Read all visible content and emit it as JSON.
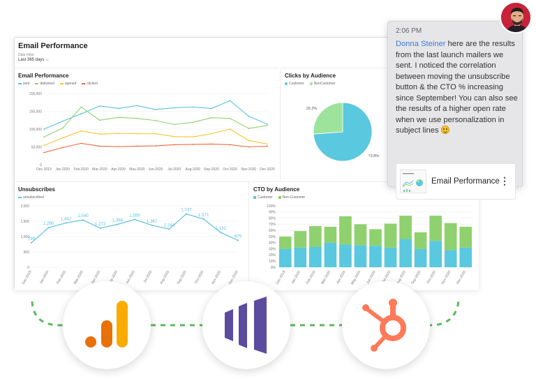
{
  "dashboard": {
    "title": "Email Performance",
    "filter_label": "Date Filter",
    "filter_value": "Last 365 days"
  },
  "panels": {
    "email_performance": {
      "title": "Email Performance",
      "legend": [
        {
          "label": "sent",
          "color": "#5bc0de"
        },
        {
          "label": "delivered",
          "color": "#8fd16e"
        },
        {
          "label": "opened",
          "color": "#f4c430"
        },
        {
          "label": "clicked",
          "color": "#ef6a3c"
        }
      ]
    },
    "clicks_by_audience": {
      "title": "Clicks by Audience",
      "legend": [
        {
          "label": "Customer",
          "color": "#5ac8de"
        },
        {
          "label": "NonCustomer",
          "color": "#9ee39b"
        }
      ]
    },
    "unsubscribes": {
      "title": "Unsubscribes",
      "legend": [
        {
          "label": "unsubscribed",
          "color": "#5bc0de"
        }
      ]
    },
    "cto_by_audience": {
      "title": "CTO by Audience",
      "legend": [
        {
          "label": "Customer",
          "color": "#5ac8de"
        },
        {
          "label": "Non-Customer",
          "color": "#8fd16e"
        }
      ]
    }
  },
  "chart_data": [
    {
      "type": "line",
      "title": "Email Performance",
      "categories": [
        "Dec-2019",
        "Jan-2020",
        "Feb-2020",
        "Mar-2020",
        "Apr-2020",
        "May-2020",
        "Jun-2020",
        "Jul-2020",
        "Aug-2020",
        "Sep-2020",
        "Oct-2020",
        "Nov-2020",
        "Dec-2020"
      ],
      "yticks": [
        "0",
        "50,000",
        "100,000",
        "150,000",
        "200,000"
      ],
      "ylim": [
        0,
        200000
      ],
      "series": [
        {
          "name": "sent",
          "color": "#5bc0de",
          "values": [
            100000,
            122000,
            143000,
            165000,
            158000,
            166000,
            155000,
            160000,
            162000,
            158000,
            180000,
            136000,
            114000
          ]
        },
        {
          "name": "delivered",
          "color": "#8fd16e",
          "values": [
            78000,
            103000,
            162000,
            125000,
            133000,
            130000,
            124000,
            113000,
            119000,
            132000,
            130000,
            102000,
            110000
          ]
        },
        {
          "name": "opened",
          "color": "#f4c430",
          "values": [
            54000,
            75000,
            95000,
            86000,
            88000,
            87000,
            87000,
            79000,
            78000,
            87000,
            100000,
            68000,
            58000
          ]
        },
        {
          "name": "clicked",
          "color": "#ef6a3c",
          "values": [
            34000,
            48000,
            60000,
            52000,
            51000,
            52000,
            53000,
            56000,
            57000,
            58000,
            56000,
            50000,
            52000
          ]
        }
      ],
      "grid": true
    },
    {
      "type": "pie",
      "title": "Clicks by Audience",
      "slices": [
        {
          "name": "Customer",
          "value": 73.8,
          "label": "73.8%",
          "color": "#5ac8de"
        },
        {
          "name": "NonCustomer",
          "value": 26.2,
          "label": "26.2%",
          "color": "#9ee39b"
        }
      ]
    },
    {
      "type": "line",
      "title": "Unsubscribes",
      "categories": [
        "Dec-2019",
        "Jan-2020",
        "Feb-2020",
        "Mar-2020",
        "Apr-2020",
        "May-2020",
        "Jun-2020",
        "Jul-2020",
        "Aug-2020",
        "Sep-2020",
        "Oct-2020",
        "Nov-2020",
        "Dec-2020"
      ],
      "yticks": [
        "0",
        "500",
        "1,000",
        "1,500",
        "2,000"
      ],
      "ylim": [
        0,
        2000
      ],
      "series": [
        {
          "name": "unsubscribed",
          "color": "#5bc0de",
          "values": [
            799,
            1290,
            1442,
            1540,
            1272,
            1398,
            1556,
            1367,
            1244,
            1737,
            1571,
            1132,
            875
          ],
          "labels": [
            "799",
            "1,290",
            "1,442",
            "1,540",
            "1,272",
            "1,398",
            "1,556",
            "1,367",
            "1,244",
            "1,737",
            "1,571",
            "1,132",
            "875"
          ]
        }
      ],
      "grid": true
    },
    {
      "type": "bar",
      "stacked": true,
      "title": "CTO by Audience",
      "categories": [
        "Dec-2019",
        "Jan-2020",
        "Feb-2020",
        "Mar-2020",
        "Apr-2020",
        "May-2020",
        "Jun-2020",
        "Jul-2020",
        "Aug-2020",
        "Sep-2020",
        "Oct-2020",
        "Nov-2020",
        "Dec-2020"
      ],
      "yticks": [
        "0%",
        "10%",
        "20%",
        "30%",
        "40%",
        "50%",
        "60%",
        "70%",
        "80%",
        "90%",
        "100%"
      ],
      "ylim": [
        0,
        100
      ],
      "series": [
        {
          "name": "Customer",
          "color": "#5ac8de",
          "values": [
            30,
            32,
            33,
            40,
            37,
            36,
            35,
            32,
            46,
            30,
            43,
            28,
            32
          ]
        },
        {
          "name": "Non-Customer",
          "color": "#8fd16e",
          "values": [
            20,
            27,
            34,
            26,
            46,
            34,
            27,
            39,
            38,
            27,
            41,
            44,
            34
          ]
        }
      ],
      "grid": true
    }
  ],
  "chat": {
    "time": "2:06 PM",
    "mention": "Donna Steiner",
    "message": " here are the results from the last launch mailers we sent. I noticed the correlation between moving the unsubscribe button & the CTO % increasing since September! You can also see the results of a higher open rate when we use personalization in subject lines",
    "emoji": "smiling-face-emoji",
    "attachment_title": "Email Performance",
    "more_icon": "vertical-ellipsis-icon"
  },
  "integrations": [
    {
      "name": "google-analytics-logo",
      "colors": [
        "#e8710a",
        "#f9ab00"
      ]
    },
    {
      "name": "marketo-logo",
      "colors": [
        "#5c4c9f"
      ]
    },
    {
      "name": "hubspot-logo",
      "colors": [
        "#ff7a59"
      ]
    }
  ],
  "connector_color": "#5cb85c"
}
